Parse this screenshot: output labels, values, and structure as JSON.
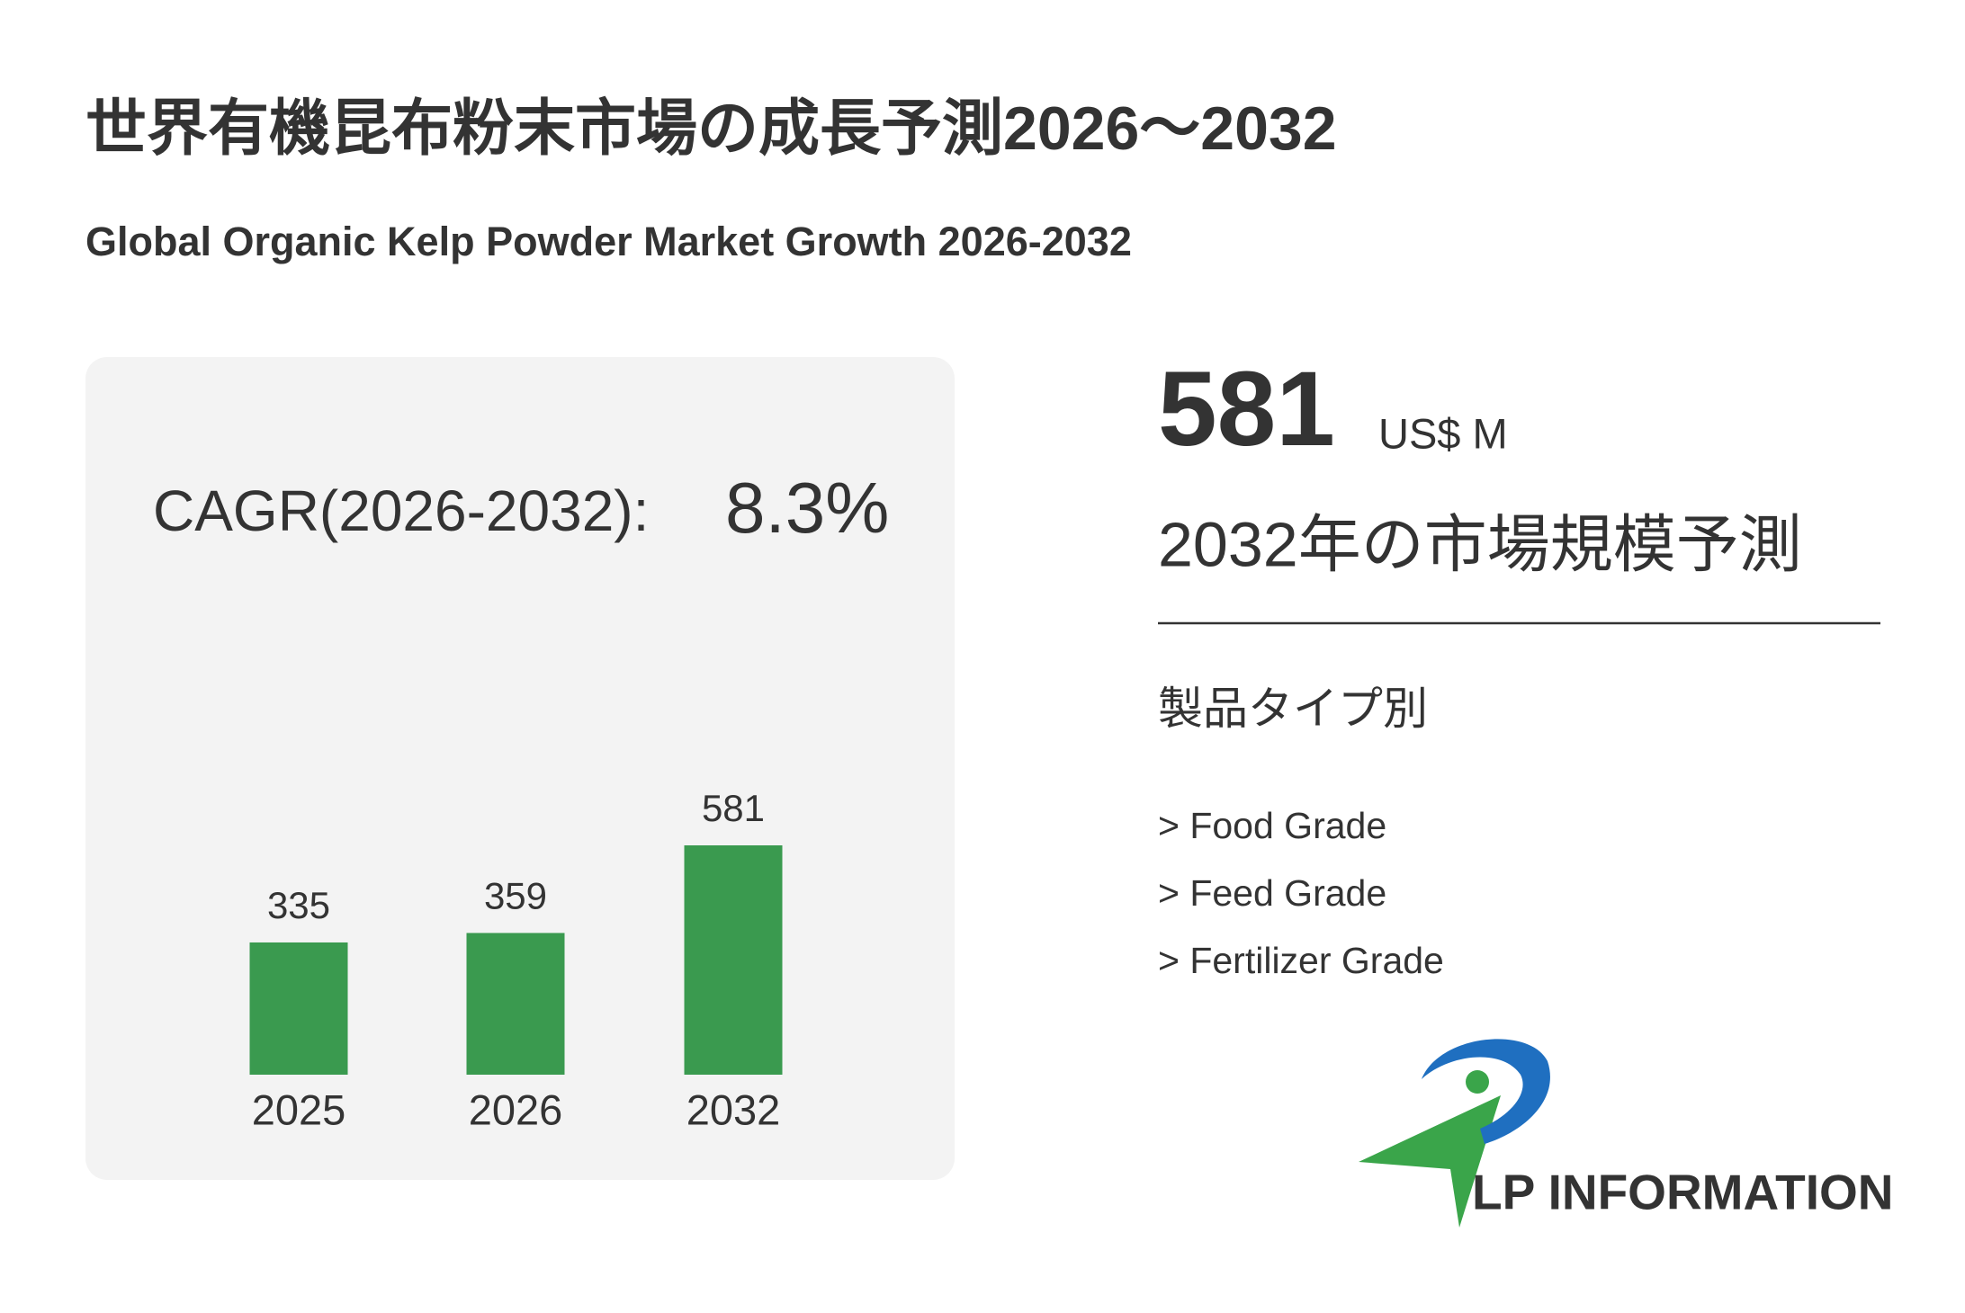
{
  "header": {
    "title": "世界有機昆布粉末市場の成長予測2026～2032",
    "subtitle": "Global Organic Kelp Powder Market Growth 2026-2032"
  },
  "cagr": {
    "label": "CAGR(2026-2032):",
    "value": "8.3%"
  },
  "chart_data": {
    "type": "bar",
    "categories": [
      "2025",
      "2026",
      "2032"
    ],
    "values": [
      335,
      359,
      581
    ],
    "color": "#3a9a4f"
  },
  "forecast": {
    "value": 581,
    "unit": "US$ M",
    "caption": "2032年の市場規模予測"
  },
  "segments": {
    "title": "製品タイプ別",
    "items": [
      "> Food Grade",
      "> Feed Grade",
      "> Fertilizer Grade"
    ]
  },
  "logo": {
    "text": "LP INFORMATION"
  }
}
